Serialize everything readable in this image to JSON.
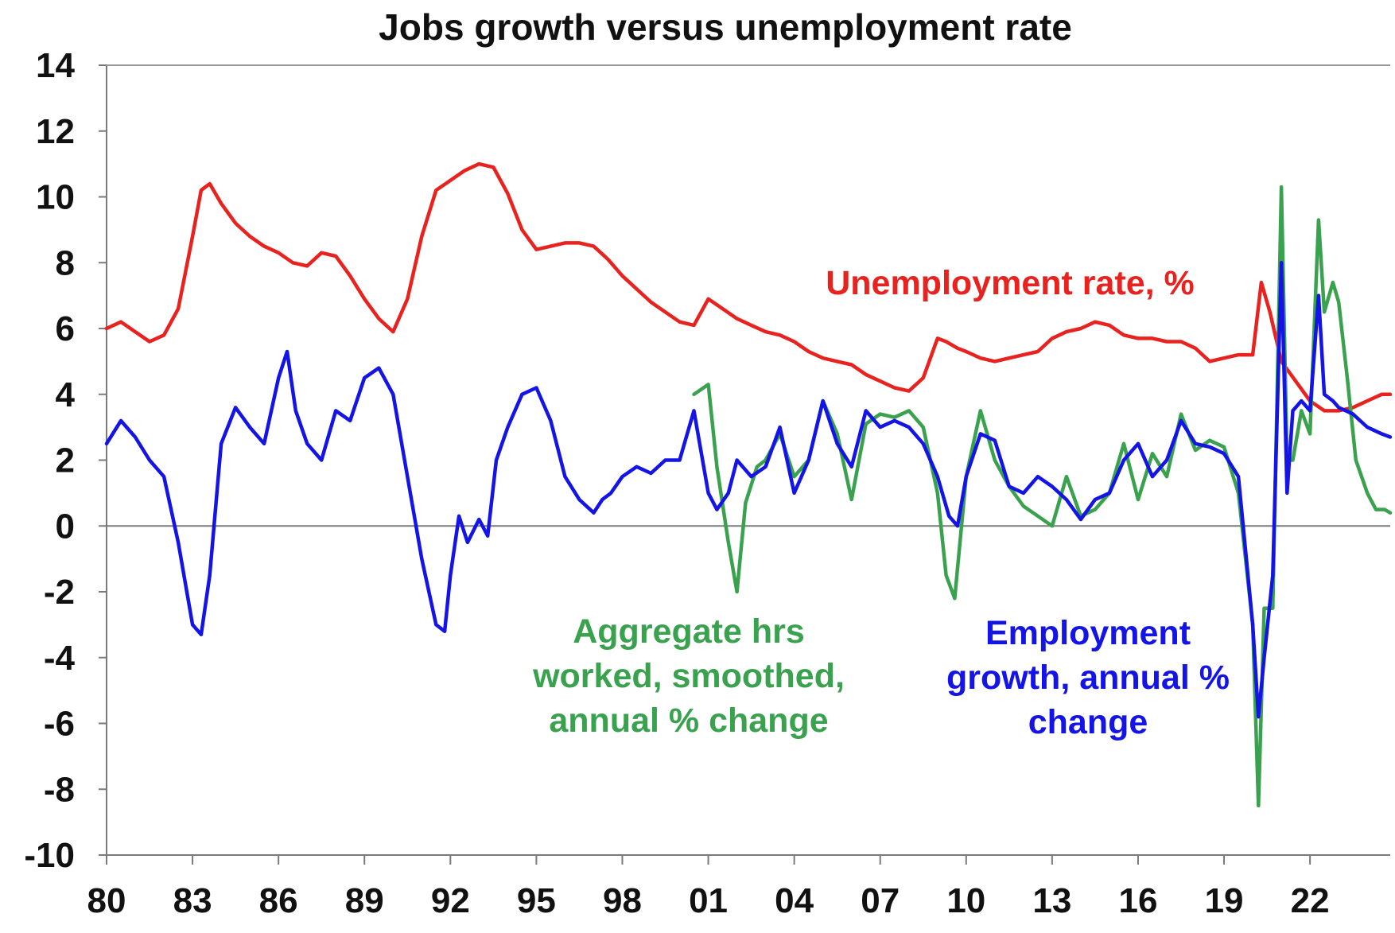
{
  "chart_data": {
    "type": "line",
    "title": "Jobs growth versus unemployment rate",
    "xlabel": "",
    "ylabel": "",
    "x_ticks": [
      "80",
      "83",
      "86",
      "89",
      "92",
      "95",
      "98",
      "01",
      "04",
      "07",
      "10",
      "13",
      "16",
      "19",
      "22"
    ],
    "x_tick_years": [
      1980,
      1983,
      1986,
      1989,
      1992,
      1995,
      1998,
      2001,
      2004,
      2007,
      2010,
      2013,
      2016,
      2019,
      2022
    ],
    "xlim": [
      1980,
      2024.8
    ],
    "ylim": [
      -10,
      14
    ],
    "y_ticks": [
      14,
      12,
      10,
      8,
      6,
      4,
      2,
      0,
      -2,
      -4,
      -6,
      -8,
      -10
    ],
    "grid": false,
    "annotations": [
      {
        "series": "unemployment",
        "color": "#e8231f",
        "lines": [
          "Unemployment rate, %"
        ]
      },
      {
        "series": "hours",
        "color": "#3aa24f",
        "lines": [
          "Aggregate hrs",
          "worked, smoothed,",
          "annual % change"
        ]
      },
      {
        "series": "employment",
        "color": "#1414e6",
        "lines": [
          "Employment",
          "growth, annual %",
          "change"
        ]
      }
    ],
    "series": [
      {
        "key": "unemployment",
        "color": "#e8231f",
        "x": [
          1980.0,
          1980.5,
          1981.0,
          1981.5,
          1982.0,
          1982.5,
          1983.0,
          1983.3,
          1983.6,
          1984.0,
          1984.5,
          1985.0,
          1985.5,
          1986.0,
          1986.5,
          1987.0,
          1987.5,
          1988.0,
          1988.5,
          1989.0,
          1989.5,
          1990.0,
          1990.5,
          1991.0,
          1991.5,
          1992.0,
          1992.5,
          1993.0,
          1993.5,
          1994.0,
          1994.5,
          1995.0,
          1995.5,
          1996.0,
          1996.5,
          1997.0,
          1997.5,
          1998.0,
          1998.5,
          1999.0,
          1999.5,
          2000.0,
          2000.5,
          2001.0,
          2001.5,
          2002.0,
          2002.5,
          2003.0,
          2003.5,
          2004.0,
          2004.5,
          2005.0,
          2005.5,
          2006.0,
          2006.5,
          2007.0,
          2007.5,
          2008.0,
          2008.5,
          2009.0,
          2009.3,
          2009.7,
          2010.0,
          2010.5,
          2011.0,
          2011.5,
          2012.0,
          2012.5,
          2013.0,
          2013.5,
          2014.0,
          2014.5,
          2015.0,
          2015.5,
          2016.0,
          2016.5,
          2017.0,
          2017.5,
          2018.0,
          2018.5,
          2019.0,
          2019.5,
          2020.0,
          2020.3,
          2020.6,
          2021.0,
          2021.5,
          2022.0,
          2022.5,
          2023.0,
          2023.5,
          2024.0,
          2024.5,
          2024.8
        ],
        "values": [
          6.0,
          6.2,
          5.9,
          5.6,
          5.8,
          6.6,
          8.8,
          10.2,
          10.4,
          9.8,
          9.2,
          8.8,
          8.5,
          8.3,
          8.0,
          7.9,
          8.3,
          8.2,
          7.6,
          6.9,
          6.3,
          5.9,
          6.9,
          8.8,
          10.2,
          10.5,
          10.8,
          11.0,
          10.9,
          10.1,
          9.0,
          8.4,
          8.5,
          8.6,
          8.6,
          8.5,
          8.1,
          7.6,
          7.2,
          6.8,
          6.5,
          6.2,
          6.1,
          6.9,
          6.6,
          6.3,
          6.1,
          5.9,
          5.8,
          5.6,
          5.3,
          5.1,
          5.0,
          4.9,
          4.6,
          4.4,
          4.2,
          4.1,
          4.5,
          5.7,
          5.6,
          5.4,
          5.3,
          5.1,
          5.0,
          5.1,
          5.2,
          5.3,
          5.7,
          5.9,
          6.0,
          6.2,
          6.1,
          5.8,
          5.7,
          5.7,
          5.6,
          5.6,
          5.4,
          5.0,
          5.1,
          5.2,
          5.2,
          7.4,
          6.5,
          5.0,
          4.4,
          3.8,
          3.5,
          3.5,
          3.6,
          3.8,
          4.0,
          4.0
        ]
      },
      {
        "key": "hours",
        "color": "#3aa24f",
        "x": [
          2000.5,
          2001.0,
          2001.3,
          2001.7,
          2002.0,
          2002.3,
          2002.7,
          2003.0,
          2003.5,
          2004.0,
          2004.5,
          2005.0,
          2005.5,
          2006.0,
          2006.5,
          2007.0,
          2007.5,
          2008.0,
          2008.5,
          2009.0,
          2009.3,
          2009.6,
          2010.0,
          2010.5,
          2011.0,
          2011.5,
          2012.0,
          2012.5,
          2013.0,
          2013.5,
          2014.0,
          2014.5,
          2015.0,
          2015.5,
          2016.0,
          2016.5,
          2017.0,
          2017.5,
          2018.0,
          2018.5,
          2019.0,
          2019.5,
          2020.0,
          2020.2,
          2020.4,
          2020.7,
          2021.0,
          2021.2,
          2021.4,
          2021.7,
          2022.0,
          2022.3,
          2022.5,
          2022.8,
          2023.0,
          2023.3,
          2023.6,
          2024.0,
          2024.3,
          2024.6,
          2024.8
        ],
        "values": [
          4.0,
          4.3,
          1.8,
          -0.5,
          -2.0,
          0.7,
          1.8,
          2.0,
          2.8,
          1.5,
          2.0,
          3.8,
          2.8,
          0.8,
          3.1,
          3.4,
          3.3,
          3.5,
          3.0,
          1.0,
          -1.5,
          -2.2,
          1.5,
          3.5,
          2.0,
          1.2,
          0.6,
          0.3,
          0.0,
          1.5,
          0.3,
          0.5,
          1.0,
          2.5,
          0.8,
          2.2,
          1.5,
          3.4,
          2.3,
          2.6,
          2.4,
          1.0,
          -3.0,
          -8.5,
          -2.5,
          -2.5,
          10.3,
          2.0,
          2.0,
          3.5,
          2.8,
          9.3,
          6.5,
          7.4,
          6.8,
          4.5,
          2.0,
          1.0,
          0.5,
          0.5,
          0.4
        ]
      },
      {
        "key": "employment",
        "color": "#1414e6",
        "x": [
          1980.0,
          1980.5,
          1981.0,
          1981.5,
          1982.0,
          1982.5,
          1983.0,
          1983.3,
          1983.6,
          1984.0,
          1984.5,
          1985.0,
          1985.5,
          1986.0,
          1986.3,
          1986.6,
          1987.0,
          1987.5,
          1988.0,
          1988.5,
          1989.0,
          1989.5,
          1990.0,
          1990.5,
          1991.0,
          1991.5,
          1991.8,
          1992.0,
          1992.3,
          1992.6,
          1993.0,
          1993.3,
          1993.6,
          1994.0,
          1994.5,
          1995.0,
          1995.5,
          1996.0,
          1996.5,
          1997.0,
          1997.3,
          1997.6,
          1998.0,
          1998.5,
          1999.0,
          1999.5,
          2000.0,
          2000.5,
          2001.0,
          2001.3,
          2001.7,
          2002.0,
          2002.5,
          2003.0,
          2003.5,
          2004.0,
          2004.5,
          2005.0,
          2005.5,
          2006.0,
          2006.5,
          2007.0,
          2007.5,
          2008.0,
          2008.5,
          2009.0,
          2009.4,
          2009.7,
          2010.0,
          2010.5,
          2011.0,
          2011.5,
          2012.0,
          2012.5,
          2013.0,
          2013.5,
          2014.0,
          2014.5,
          2015.0,
          2015.5,
          2016.0,
          2016.5,
          2017.0,
          2017.5,
          2018.0,
          2018.5,
          2019.0,
          2019.5,
          2020.0,
          2020.2,
          2020.4,
          2020.7,
          2021.0,
          2021.2,
          2021.4,
          2021.7,
          2022.0,
          2022.3,
          2022.5,
          2022.8,
          2023.0,
          2023.5,
          2024.0,
          2024.5,
          2024.8
        ],
        "values": [
          2.5,
          3.2,
          2.7,
          2.0,
          1.5,
          -0.5,
          -3.0,
          -3.3,
          -1.5,
          2.5,
          3.6,
          3.0,
          2.5,
          4.5,
          5.3,
          3.5,
          2.5,
          2.0,
          3.5,
          3.2,
          4.5,
          4.8,
          4.0,
          1.5,
          -1.0,
          -3.0,
          -3.2,
          -1.5,
          0.3,
          -0.5,
          0.2,
          -0.3,
          2.0,
          3.0,
          4.0,
          4.2,
          3.2,
          1.5,
          0.8,
          0.4,
          0.8,
          1.0,
          1.5,
          1.8,
          1.6,
          2.0,
          2.0,
          3.5,
          1.0,
          0.5,
          1.0,
          2.0,
          1.5,
          1.8,
          3.0,
          1.0,
          2.0,
          3.8,
          2.5,
          1.8,
          3.5,
          3.0,
          3.2,
          3.0,
          2.5,
          1.5,
          0.3,
          0.0,
          1.5,
          2.8,
          2.6,
          1.2,
          1.0,
          1.5,
          1.2,
          0.8,
          0.2,
          0.8,
          1.0,
          2.0,
          2.5,
          1.5,
          2.0,
          3.2,
          2.5,
          2.4,
          2.2,
          1.5,
          -3.0,
          -5.8,
          -4.0,
          -1.5,
          8.0,
          1.0,
          3.5,
          3.8,
          3.5,
          7.0,
          4.0,
          3.8,
          3.6,
          3.4,
          3.0,
          2.8,
          2.7
        ]
      }
    ]
  }
}
